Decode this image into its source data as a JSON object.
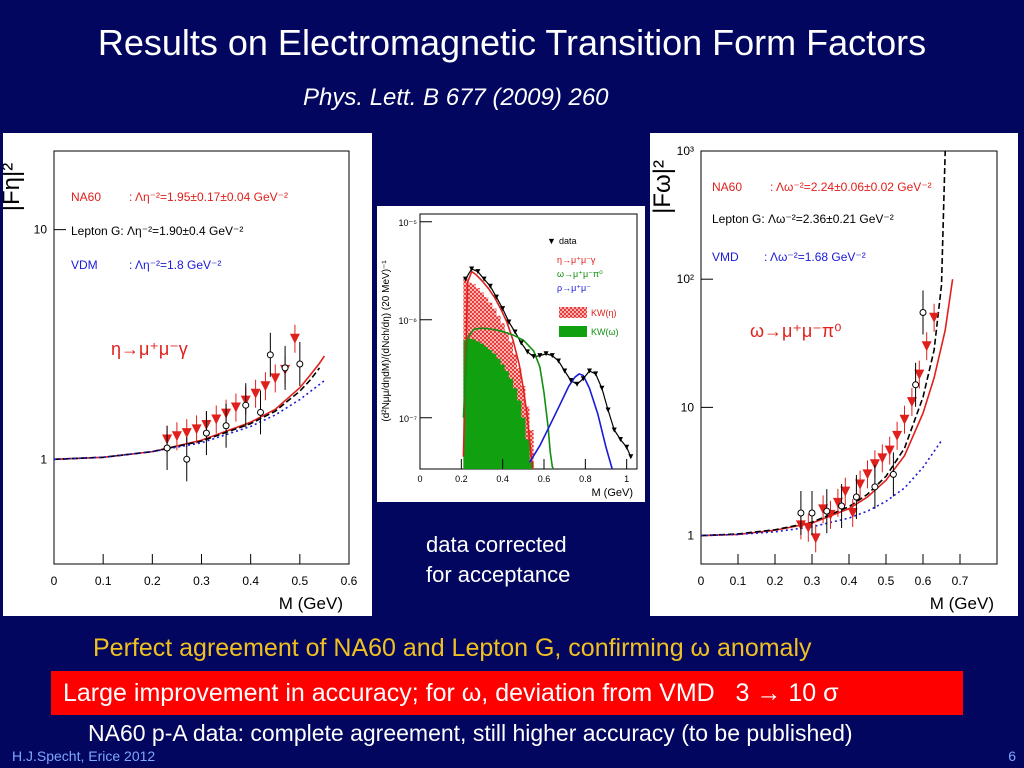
{
  "slide": {
    "title": "Results on Electromagnetic Transition Form Factors",
    "reference": "Phys. Lett. B 677 (2009) 260",
    "note_line1": "data corrected",
    "note_line2": "for acceptance",
    "conclusion": "Perfect agreement of NA60 and Lepton G, confirming ω anomaly",
    "highlight": "Large improvement in accuracy; for ω, deviation from VMD   3 → 10 σ",
    "pa_note": "NA60 p-A data: complete agreement, still higher accuracy (to be published)",
    "footer": "H.J.Specht, Erice 2012",
    "page": "6",
    "colors": {
      "background": "#02065f",
      "conclusion": "#f0c020",
      "highlight_box": "#ff0000",
      "footer": "#7fa6ff"
    }
  },
  "chart_data": [
    {
      "type": "scatter",
      "ylabel": "|Fη|²",
      "xlabel": "M (GeV)",
      "xlim": [
        0,
        0.6
      ],
      "ylim": [
        0.35,
        22
      ],
      "yscale": "log",
      "x_ticks": [
        "0",
        "0.1",
        "0.2",
        "0.3",
        "0.4",
        "0.5",
        "0.6"
      ],
      "y_ticks": [
        "1",
        "10"
      ],
      "y_tick_values": [
        1,
        10
      ],
      "legend": [
        {
          "label": "NA60",
          "value": ": Λη⁻²=1.95±0.17±0.04 GeV⁻²",
          "color": "#e0201c"
        },
        {
          "label": "Lepton G: Λη⁻²=1.90±0.4 GeV⁻²",
          "value": "",
          "color": "#000000"
        },
        {
          "label": "VDM",
          "value": ":  Λη⁻²=1.8 GeV⁻²",
          "color": "#1a1ad8"
        }
      ],
      "annotation": "η→μ⁺μ⁻γ",
      "series": [
        {
          "name": "NA60",
          "marker": "triangle-down",
          "color": "#e0201c",
          "x": [
            0.23,
            0.25,
            0.27,
            0.29,
            0.31,
            0.33,
            0.35,
            0.37,
            0.39,
            0.41,
            0.43,
            0.45,
            0.47,
            0.49
          ],
          "y": [
            1.22,
            1.26,
            1.3,
            1.35,
            1.41,
            1.49,
            1.58,
            1.68,
            1.8,
            1.93,
            2.08,
            2.25,
            2.45,
            3.35
          ]
        },
        {
          "name": "Lepton G",
          "marker": "circle-open",
          "color": "#000000",
          "x": [
            0.23,
            0.27,
            0.31,
            0.35,
            0.39,
            0.42,
            0.44,
            0.47,
            0.5
          ],
          "y": [
            1.12,
            1.0,
            1.3,
            1.4,
            1.72,
            1.6,
            2.85,
            2.5,
            2.6
          ]
        },
        {
          "name": "NA60 fit",
          "line": "solid",
          "color": "#e0201c",
          "x": [
            0,
            0.1,
            0.2,
            0.3,
            0.4,
            0.45,
            0.5,
            0.52,
            0.54,
            0.55
          ],
          "y": [
            1.0,
            1.02,
            1.08,
            1.21,
            1.45,
            1.65,
            2.05,
            2.31,
            2.62,
            2.82
          ]
        },
        {
          "name": "Lepton G fit",
          "line": "dashed",
          "color": "#000000",
          "x": [
            0,
            0.1,
            0.2,
            0.3,
            0.4,
            0.45,
            0.5,
            0.52,
            0.54
          ],
          "y": [
            1.0,
            1.02,
            1.08,
            1.2,
            1.43,
            1.62,
            1.98,
            2.2,
            2.5
          ]
        },
        {
          "name": "VDM",
          "line": "dotted",
          "color": "#1a1ad8",
          "x": [
            0,
            0.1,
            0.2,
            0.3,
            0.4,
            0.45,
            0.5,
            0.55
          ],
          "y": [
            1.0,
            1.02,
            1.08,
            1.18,
            1.39,
            1.56,
            1.82,
            2.2
          ]
        }
      ]
    },
    {
      "type": "line",
      "ylabel": "(d²Nμμ/dηdM)/(dNch/dη) (20 MeV)⁻¹",
      "xlabel": "M (GeV)",
      "xlim": [
        0,
        1.05
      ],
      "ylim": [
        3e-08,
        1.2e-05
      ],
      "yscale": "log",
      "x_ticks": [
        "0",
        "0.2",
        "0.4",
        "0.6",
        "0.8",
        "1"
      ],
      "y_ticks": [
        "10⁻⁵",
        "10⁻⁶",
        "10⁻⁷"
      ],
      "y_tick_values": [
        1e-05,
        1e-06,
        1e-07
      ],
      "legend": [
        {
          "label": "data",
          "color": "#000000"
        },
        {
          "label": "η→μ⁺μ⁻γ",
          "color": "#e0201c"
        },
        {
          "label": "ω→μ⁺μ⁻π⁰",
          "color": "#109010"
        },
        {
          "label": "ρ→μ⁺μ⁻",
          "color": "#1a1ad8"
        },
        {
          "label": "KW(η)",
          "color": "#e0201c"
        },
        {
          "label": "KW(ω)",
          "color": "#10a010"
        }
      ],
      "series": [
        {
          "name": "data",
          "color": "#000000",
          "x": [
            0.22,
            0.25,
            0.28,
            0.31,
            0.34,
            0.37,
            0.4,
            0.43,
            0.46,
            0.49,
            0.52,
            0.55,
            0.58,
            0.61,
            0.64,
            0.67,
            0.7,
            0.73,
            0.76,
            0.79,
            0.82,
            0.85,
            0.88,
            0.91,
            0.94,
            0.97,
            1.0,
            1.02
          ],
          "y": [
            2.6e-06,
            3.3e-06,
            3.1e-06,
            2.6e-06,
            2.2e-06,
            1.7e-06,
            1.3e-06,
            9.5e-07,
            7.5e-07,
            5.8e-07,
            4.7e-07,
            4.2e-07,
            4.3e-07,
            4.5e-07,
            4.3e-07,
            3.8e-07,
            3e-07,
            2.4e-07,
            2.2e-07,
            2.5e-07,
            3e-07,
            2.8e-07,
            2e-07,
            1.2e-07,
            7.5e-08,
            6e-08,
            5e-08,
            4e-08
          ]
        },
        {
          "name": "η→μ⁺μ⁻γ",
          "color": "#e0201c",
          "x": [
            0.21,
            0.23,
            0.25,
            0.27,
            0.3,
            0.33,
            0.36,
            0.39,
            0.42,
            0.45,
            0.48,
            0.5,
            0.52,
            0.53,
            0.54,
            0.545
          ],
          "y": [
            4e-08,
            2.4e-06,
            3.1e-06,
            2.9e-06,
            2.5e-06,
            2.1e-06,
            1.7e-06,
            1.3e-06,
            9.5e-07,
            6.2e-07,
            3.5e-07,
            2e-07,
            1e-07,
            6e-08,
            3.8e-08,
            3e-08
          ]
        },
        {
          "name": "ω→μ⁺μ⁻π⁰",
          "color": "#109010",
          "x": [
            0.21,
            0.23,
            0.26,
            0.3,
            0.35,
            0.4,
            0.45,
            0.5,
            0.55,
            0.58,
            0.6,
            0.62,
            0.63,
            0.64,
            0.645
          ],
          "y": [
            1e-07,
            6.5e-07,
            8e-07,
            8.2e-07,
            8e-07,
            7.6e-07,
            7e-07,
            6.2e-07,
            4.8e-07,
            3.3e-07,
            1.8e-07,
            8e-08,
            4.5e-08,
            3.2e-08,
            3e-08
          ]
        },
        {
          "name": "ρ→μ⁺μ⁻",
          "color": "#1a1ad8",
          "x": [
            0.53,
            0.58,
            0.63,
            0.68,
            0.72,
            0.75,
            0.77,
            0.79,
            0.82,
            0.86,
            0.9,
            0.93
          ],
          "y": [
            3.5e-08,
            5.2e-08,
            8.5e-08,
            1.4e-07,
            2.1e-07,
            2.6e-07,
            2.8e-07,
            2.7e-07,
            2e-07,
            1.1e-07,
            5e-08,
            3e-08
          ]
        },
        {
          "name": "KW(η)",
          "style": "hatched-histogram",
          "color": "#e0201c",
          "x": [
            0.21,
            0.23,
            0.25,
            0.27,
            0.29,
            0.31,
            0.33,
            0.35,
            0.37,
            0.39,
            0.41,
            0.43,
            0.45,
            0.47,
            0.49,
            0.51,
            0.53,
            0.55
          ],
          "y": [
            2.7e-06,
            2.4e-06,
            2.3e-06,
            2.1e-06,
            1.9e-06,
            1.7e-06,
            1.5e-06,
            1.3e-06,
            1.1e-06,
            9.2e-07,
            7.5e-07,
            6e-07,
            4.5e-07,
            3.2e-07,
            2.1e-07,
            1.3e-07,
            7.5e-08,
            0
          ]
        },
        {
          "name": "KW(ω)",
          "style": "filled-histogram",
          "color": "#10a010",
          "x": [
            0.21,
            0.23,
            0.25,
            0.27,
            0.29,
            0.31,
            0.33,
            0.35,
            0.37,
            0.39,
            0.41,
            0.43,
            0.45,
            0.47,
            0.49,
            0.51,
            0.53,
            0.55
          ],
          "y": [
            6.2e-07,
            6.4e-07,
            6.3e-07,
            6e-07,
            5.7e-07,
            5.3e-07,
            4.9e-07,
            4.5e-07,
            4e-07,
            3.5e-07,
            3e-07,
            2.5e-07,
            2e-07,
            1.5e-07,
            1e-07,
            6e-08,
            3.5e-08,
            0
          ]
        }
      ]
    },
    {
      "type": "scatter",
      "ylabel": "|Fω|²",
      "xlabel": "M (GeV)",
      "xlim": [
        0,
        0.8
      ],
      "ylim": [
        0.6,
        1000
      ],
      "yscale": "log",
      "x_ticks": [
        "0",
        "0.1",
        "0.2",
        "0.3",
        "0.4",
        "0.5",
        "0.6",
        "0.7"
      ],
      "y_ticks": [
        "1",
        "10",
        "10²",
        "10³"
      ],
      "y_tick_values": [
        1,
        10,
        100,
        1000
      ],
      "legend": [
        {
          "label": "NA60",
          "value": ": Λω⁻²=2.24±0.06±0.02 GeV⁻²",
          "color": "#e0201c"
        },
        {
          "label": "Lepton G: Λω⁻²=2.36±0.21 GeV⁻²",
          "value": "",
          "color": "#000000"
        },
        {
          "label": "VMD",
          "value": ":  Λω⁻²=1.68 GeV⁻²",
          "color": "#1a1ad8"
        }
      ],
      "annotation": "ω→μ⁺μ⁻π⁰",
      "series": [
        {
          "name": "NA60",
          "marker": "triangle-down",
          "color": "#e0201c",
          "x": [
            0.27,
            0.29,
            0.31,
            0.33,
            0.35,
            0.37,
            0.39,
            0.41,
            0.43,
            0.45,
            0.47,
            0.49,
            0.51,
            0.53,
            0.55,
            0.57,
            0.59,
            0.61,
            0.63
          ],
          "y": [
            1.2,
            1.15,
            0.95,
            1.6,
            1.45,
            1.8,
            2.2,
            1.5,
            2.5,
            3.0,
            3.6,
            4.0,
            4.6,
            6.0,
            8.0,
            11.0,
            18.0,
            30.0,
            50.0
          ]
        },
        {
          "name": "Lepton G",
          "marker": "circle-open",
          "color": "#000000",
          "x": [
            0.27,
            0.3,
            0.34,
            0.38,
            0.42,
            0.47,
            0.52,
            0.58,
            0.6
          ],
          "y": [
            1.5,
            1.5,
            1.55,
            1.7,
            2.0,
            2.4,
            3.0,
            15.0,
            55.0
          ]
        },
        {
          "name": "NA60 fit",
          "line": "solid",
          "color": "#e0201c",
          "x": [
            0,
            0.1,
            0.2,
            0.3,
            0.4,
            0.45,
            0.5,
            0.55,
            0.6,
            0.63,
            0.66,
            0.68
          ],
          "y": [
            1.0,
            1.02,
            1.1,
            1.25,
            1.62,
            2.0,
            2.7,
            4.2,
            9.0,
            17.0,
            40.0,
            100.0
          ]
        },
        {
          "name": "Lepton G fit",
          "line": "dashed",
          "color": "#000000",
          "x": [
            0,
            0.1,
            0.2,
            0.3,
            0.4,
            0.45,
            0.5,
            0.55,
            0.6,
            0.63,
            0.65,
            0.66
          ],
          "y": [
            1.0,
            1.03,
            1.11,
            1.27,
            1.68,
            2.1,
            2.9,
            4.8,
            12.0,
            28.0,
            90.0,
            1000.0
          ]
        },
        {
          "name": "VMD",
          "line": "dotted",
          "color": "#1a1ad8",
          "x": [
            0,
            0.1,
            0.2,
            0.3,
            0.4,
            0.45,
            0.5,
            0.55,
            0.6,
            0.65
          ],
          "y": [
            1.0,
            1.02,
            1.07,
            1.17,
            1.37,
            1.55,
            1.85,
            2.35,
            3.4,
            5.5
          ]
        }
      ]
    }
  ]
}
